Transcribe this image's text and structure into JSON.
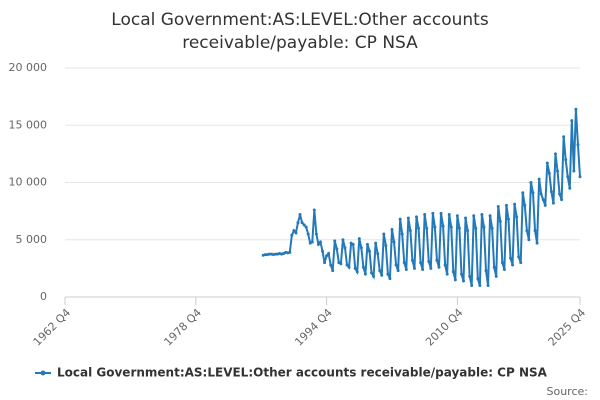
{
  "chart_data": {
    "type": "line",
    "title": [
      "Local Government:AS:LEVEL:Other accounts",
      "receivable/payable: CP NSA"
    ],
    "source": "Source:",
    "xlim": [
      1962.75,
      2025.75
    ],
    "xticks": [
      {
        "value": 1962.75,
        "label": "1962 Q4"
      },
      {
        "value": 1978.75,
        "label": "1978 Q4"
      },
      {
        "value": 1994.75,
        "label": "1994 Q4"
      },
      {
        "value": 2010.75,
        "label": "2010 Q4"
      },
      {
        "value": 2025.75,
        "label": "2025 Q4"
      }
    ],
    "ylim": [
      0,
      20000
    ],
    "yticks": [
      {
        "value": 0,
        "label": "0"
      },
      {
        "value": 5000,
        "label": "5 000"
      },
      {
        "value": 10000,
        "label": "10 000"
      },
      {
        "value": 15000,
        "label": "15 000"
      },
      {
        "value": 20000,
        "label": "20 000"
      }
    ],
    "grid": true,
    "legend": "bottom",
    "x": [
      1987,
      1987.25,
      1987.5,
      1987.75,
      1988,
      1988.25,
      1988.5,
      1988.75,
      1989,
      1989.25,
      1989.5,
      1989.75,
      1990,
      1990.25,
      1990.5,
      1990.75,
      1991,
      1991.25,
      1991.5,
      1991.75,
      1992,
      1992.25,
      1992.5,
      1992.75,
      1993,
      1993.25,
      1993.5,
      1993.75,
      1994,
      1994.25,
      1994.5,
      1994.75,
      1995,
      1995.25,
      1995.5,
      1995.75,
      1996,
      1996.25,
      1996.5,
      1996.75,
      1997,
      1997.25,
      1997.5,
      1997.75,
      1998,
      1998.25,
      1998.5,
      1998.75,
      1999,
      1999.25,
      1999.5,
      1999.75,
      2000,
      2000.25,
      2000.5,
      2000.75,
      2001,
      2001.25,
      2001.5,
      2001.75,
      2002,
      2002.25,
      2002.5,
      2002.75,
      2003,
      2003.25,
      2003.5,
      2003.75,
      2004,
      2004.25,
      2004.5,
      2004.75,
      2005,
      2005.25,
      2005.5,
      2005.75,
      2006,
      2006.25,
      2006.5,
      2006.75,
      2007,
      2007.25,
      2007.5,
      2007.75,
      2008,
      2008.25,
      2008.5,
      2008.75,
      2009,
      2009.25,
      2009.5,
      2009.75,
      2010,
      2010.25,
      2010.5,
      2010.75,
      2011,
      2011.25,
      2011.5,
      2011.75,
      2012,
      2012.25,
      2012.5,
      2012.75,
      2013,
      2013.25,
      2013.5,
      2013.75,
      2014,
      2014.25,
      2014.5,
      2014.75,
      2015,
      2015.25,
      2015.5,
      2015.75,
      2016,
      2016.25,
      2016.5,
      2016.75,
      2017,
      2017.25,
      2017.5,
      2017.75,
      2018,
      2018.25,
      2018.5,
      2018.75,
      2019,
      2019.25,
      2019.5,
      2019.75,
      2020,
      2020.25,
      2020.5,
      2020.75,
      2021,
      2021.25,
      2021.5,
      2021.75,
      2022,
      2022.25,
      2022.5,
      2022.75,
      2023,
      2023.25,
      2023.5,
      2023.75,
      2024,
      2024.25,
      2024.5,
      2024.75,
      2025,
      2025.25,
      2025.5,
      2025.75
    ],
    "series": [
      {
        "name": "Local Government:AS:LEVEL:Other accounts receivable/payable: CP NSA",
        "color": "#2479b8",
        "values": [
          3650,
          3700,
          3700,
          3750,
          3750,
          3700,
          3750,
          3750,
          3800,
          3750,
          3800,
          3900,
          3850,
          3900,
          5400,
          5800,
          5600,
          6500,
          7200,
          6500,
          6300,
          6100,
          5500,
          4700,
          4800,
          7600,
          5500,
          4600,
          4800,
          4000,
          3000,
          3600,
          3800,
          2800,
          2300,
          4900,
          4200,
          3000,
          2900,
          5000,
          4300,
          2800,
          2600,
          4700,
          4600,
          2500,
          2200,
          5100,
          4300,
          2600,
          2000,
          4600,
          4000,
          2100,
          1800,
          4700,
          3800,
          2300,
          1900,
          5500,
          4500,
          2000,
          1600,
          5900,
          4800,
          2800,
          2300,
          6800,
          5500,
          3000,
          2400,
          6900,
          5800,
          3200,
          2500,
          7000,
          6000,
          3000,
          2400,
          7200,
          6000,
          3100,
          2500,
          7300,
          6100,
          3200,
          2600,
          7300,
          6200,
          2800,
          2000,
          7200,
          6100,
          2200,
          1500,
          7100,
          6000,
          2000,
          1400,
          6900,
          5800,
          1800,
          1000,
          7100,
          6000,
          1600,
          1000,
          7200,
          6100,
          2300,
          1000,
          7100,
          6000,
          2600,
          1800,
          7900,
          6600,
          3000,
          2400,
          8000,
          6800,
          3400,
          2800,
          8100,
          7000,
          3500,
          3000,
          9100,
          8000,
          5800,
          5000,
          10000,
          9100,
          5800,
          4700,
          10300,
          9000,
          8500,
          8000,
          11700,
          10800,
          9200,
          8200,
          12500,
          11000,
          9000,
          8500,
          14000,
          12000,
          10500,
          9500,
          15400,
          11000,
          16400,
          13300,
          10500
        ]
      }
    ]
  }
}
